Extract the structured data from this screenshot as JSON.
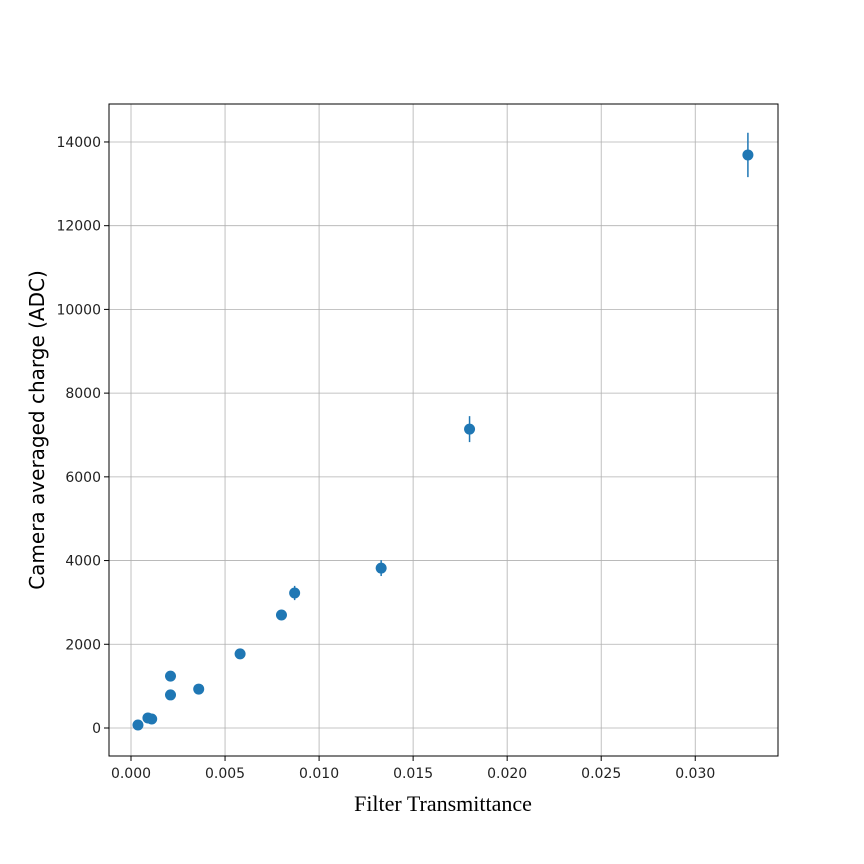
{
  "chart_data": {
    "type": "scatter",
    "x_label": "Filter Transmittance",
    "y_label": "Camera averaged charge (ADC)",
    "color": "#1f77b4",
    "grid": true,
    "x": [
      0.00037,
      0.0009,
      0.0011,
      0.0021,
      0.0021,
      0.0036,
      0.0058,
      0.008,
      0.0087,
      0.0133,
      0.018,
      0.0328
    ],
    "values": [
      72,
      240,
      215,
      1240,
      790,
      930,
      1770,
      2700,
      3225,
      3820,
      7140,
      13690
    ],
    "errors": [
      50,
      50,
      50,
      60,
      50,
      60,
      80,
      120,
      170,
      190,
      310,
      530
    ],
    "xlim": [
      -0.00117,
      0.0344
    ],
    "ylim": [
      -669,
      14907
    ],
    "xticks": [
      {
        "value": 0,
        "label": "0.000"
      },
      {
        "value": 0.005,
        "label": "0.005"
      },
      {
        "value": 0.01,
        "label": "0.010"
      },
      {
        "value": 0.015,
        "label": "0.015"
      },
      {
        "value": 0.02,
        "label": "0.020"
      },
      {
        "value": 0.025,
        "label": "0.025"
      },
      {
        "value": 0.03,
        "label": "0.030"
      }
    ],
    "yticks": [
      0,
      2000,
      4000,
      6000,
      8000,
      10000,
      12000,
      14000
    ]
  }
}
